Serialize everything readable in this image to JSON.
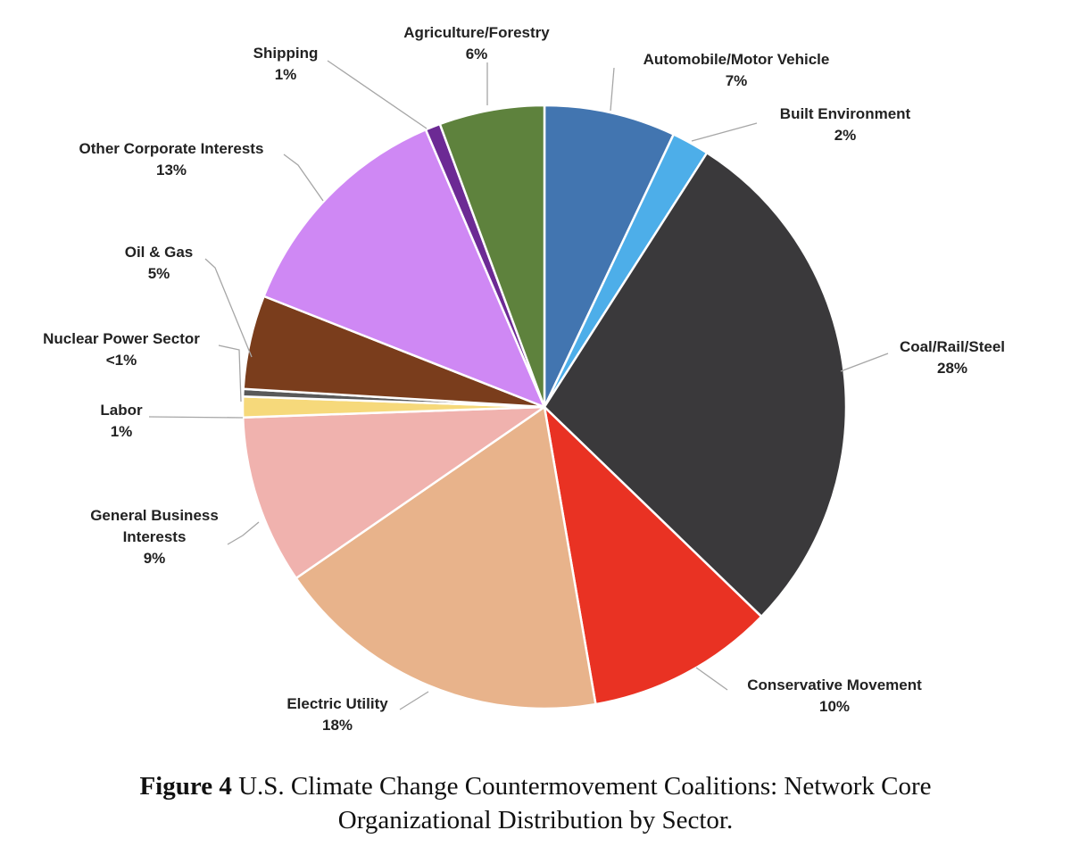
{
  "chart_data": {
    "type": "pie",
    "start_angle_deg": 0,
    "direction": "clockwise",
    "slices": [
      {
        "name": "Automobile/Motor Vehicle",
        "value": 7,
        "label": "7%",
        "color": "#4275b0"
      },
      {
        "name": "Built Environment",
        "value": 2,
        "label": "2%",
        "color": "#4daee9"
      },
      {
        "name": "Coal/Rail/Steel",
        "value": 28,
        "label": "28%",
        "color": "#3a393b"
      },
      {
        "name": "Conservative Movement",
        "value": 10,
        "label": "10%",
        "color": "#e93223"
      },
      {
        "name": "Electric Utility",
        "value": 18,
        "label": "18%",
        "color": "#e8b38b"
      },
      {
        "name": "General Business Interests",
        "value": 9,
        "label": "9%",
        "color": "#f0b2ae"
      },
      {
        "name": "Labor",
        "value": 1.1,
        "label": "1%",
        "color": "#f6d97b"
      },
      {
        "name": "Nuclear Power Sector",
        "value": 0.4,
        "label": "<1%",
        "color": "#595959"
      },
      {
        "name": "Oil & Gas",
        "value": 5,
        "label": "5%",
        "color": "#7a3d1c"
      },
      {
        "name": "Other Corporate Interests",
        "value": 12.5,
        "label": "13%",
        "color": "#cf88f4"
      },
      {
        "name": "Shipping",
        "value": 0.8,
        "label": "1%",
        "color": "#6c2a94"
      },
      {
        "name": "Agriculture/Forestry",
        "value": 5.6,
        "label": "6%",
        "color": "#5e823d"
      }
    ]
  },
  "caption": {
    "figure": "Figure 4",
    "line1": "U.S. Climate Change Countermovement Coalitions: Network Core",
    "line2": "Organizational Distribution by Sector."
  }
}
